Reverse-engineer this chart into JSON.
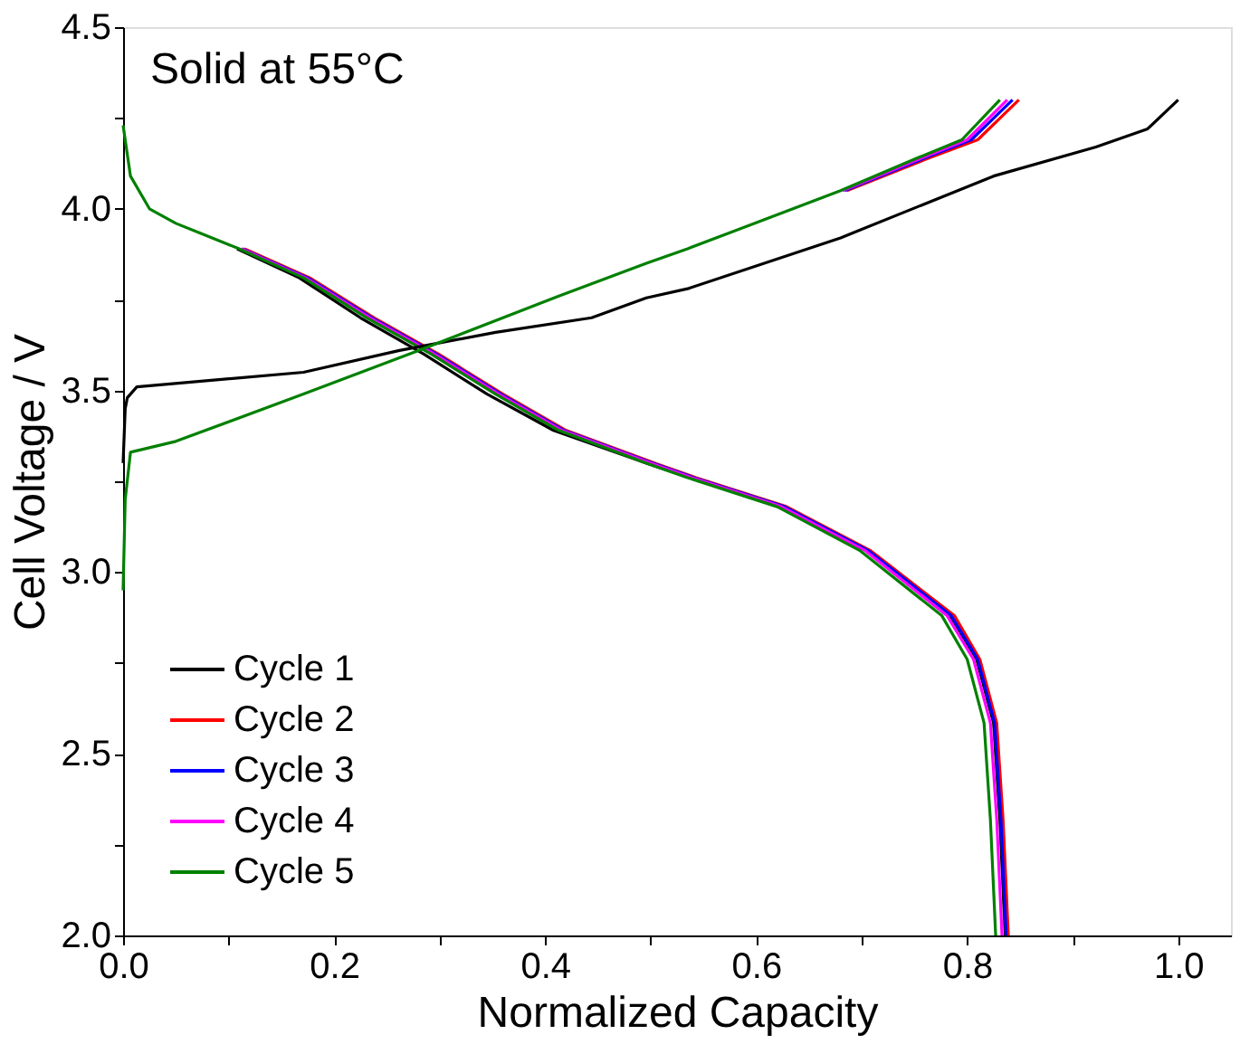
{
  "chart_data": {
    "type": "line",
    "xlabel": "Normalized Capacity",
    "ylabel": "Cell Voltage / V",
    "annotations": [
      "Solid at 55°C"
    ],
    "xlim": [
      0,
      1.05
    ],
    "ylim": [
      2.0,
      4.5
    ],
    "xticks": [
      {
        "value": 0,
        "label": "0.0"
      },
      {
        "value": 0.1,
        "label": null
      },
      {
        "value": 0.2,
        "label": "0.2"
      },
      {
        "value": 0.3,
        "label": null
      },
      {
        "value": 0.4,
        "label": "0.4"
      },
      {
        "value": 0.5,
        "label": null
      },
      {
        "value": 0.6,
        "label": "0.6"
      },
      {
        "value": 0.7,
        "label": null
      },
      {
        "value": 0.8,
        "label": "0.8"
      },
      {
        "value": 0.9,
        "label": null
      },
      {
        "value": 1.0,
        "label": "1.0"
      }
    ],
    "yticks": [
      {
        "value": 2.0,
        "label": "2.0"
      },
      {
        "value": 2.25,
        "label": null
      },
      {
        "value": 2.5,
        "label": "2.5"
      },
      {
        "value": 2.75,
        "label": null
      },
      {
        "value": 3.0,
        "label": "3.0"
      },
      {
        "value": 3.25,
        "label": null
      },
      {
        "value": 3.5,
        "label": "3.5"
      },
      {
        "value": 3.75,
        "label": null
      },
      {
        "value": 4.0,
        "label": "4.0"
      },
      {
        "value": 4.25,
        "label": null
      },
      {
        "value": 4.5,
        "label": "4.5"
      }
    ],
    "grid": false,
    "legend": "bottom left",
    "marker": "none",
    "line_style": "solid",
    "series": [
      {
        "name": "Cycle 1",
        "color": "#000000",
        "x": [
          0,
          0.002,
          0.004,
          0.013,
          0.171,
          0.262,
          0.353,
          0.444,
          0.496,
          0.535,
          0.68,
          0.825,
          0.922,
          0.971,
          1.0
        ],
        "values": [
          3.3,
          3.45,
          3.48,
          3.51,
          3.55,
          3.61,
          3.66,
          3.7,
          3.755,
          3.78,
          3.92,
          4.09,
          4.17,
          4.22,
          4.3
        ]
      },
      {
        "color": "#000000",
        "x": [
          0.108,
          0.167,
          0.225,
          0.285,
          0.345,
          0.408,
          0.496,
          0.537,
          0.625,
          0.705,
          0.784,
          0.809,
          0.825,
          0.831,
          0.836
        ],
        "values": [
          3.89,
          3.81,
          3.7,
          3.6,
          3.49,
          3.39,
          3.3,
          3.26,
          3.18,
          3.06,
          2.88,
          2.76,
          2.585,
          2.32,
          2.0
        ]
      },
      {
        "name": "Cycle 2",
        "color": "#ff0000",
        "x": [
          0.686,
          0.764,
          0.81,
          0.849
        ],
        "values": [
          4.05,
          4.14,
          4.19,
          4.3
        ]
      },
      {
        "color": "#ff0000",
        "x": [
          0.115,
          0.177,
          0.238,
          0.299,
          0.36,
          0.42,
          0.504,
          0.543,
          0.629,
          0.708,
          0.788,
          0.812,
          0.828,
          0.834,
          0.839
        ],
        "values": [
          3.89,
          3.81,
          3.7,
          3.6,
          3.49,
          3.39,
          3.3,
          3.26,
          3.18,
          3.06,
          2.88,
          2.76,
          2.585,
          2.32,
          2.0
        ]
      },
      {
        "name": "Cycle 3",
        "color": "#0000ff",
        "x": [
          0.684,
          0.76,
          0.804,
          0.843
        ],
        "values": [
          4.05,
          4.14,
          4.19,
          4.3
        ]
      },
      {
        "color": "#0000ff",
        "x": [
          0.113,
          0.175,
          0.236,
          0.297,
          0.358,
          0.418,
          0.502,
          0.541,
          0.627,
          0.706,
          0.785,
          0.81,
          0.826,
          0.832,
          0.837
        ],
        "values": [
          3.89,
          3.81,
          3.7,
          3.6,
          3.49,
          3.39,
          3.3,
          3.26,
          3.18,
          3.06,
          2.88,
          2.76,
          2.585,
          2.32,
          2.0
        ]
      },
      {
        "name": "Cycle 4",
        "color": "#ff00ff",
        "x": [
          0.682,
          0.757,
          0.8,
          0.838
        ],
        "values": [
          4.05,
          4.14,
          4.19,
          4.3
        ]
      },
      {
        "color": "#ff00ff",
        "x": [
          0.112,
          0.173,
          0.234,
          0.295,
          0.356,
          0.416,
          0.5,
          0.539,
          0.624,
          0.703,
          0.781,
          0.806,
          0.822,
          0.828,
          0.833
        ],
        "values": [
          3.89,
          3.81,
          3.7,
          3.6,
          3.49,
          3.39,
          3.3,
          3.26,
          3.18,
          3.06,
          2.88,
          2.76,
          2.585,
          2.32,
          2.0
        ]
      },
      {
        "name": "Cycle 5",
        "color": "#008000",
        "x": [
          0,
          0.002,
          0.007,
          0.05,
          0.171,
          0.28,
          0.413,
          0.496,
          0.535,
          0.68,
          0.753,
          0.795,
          0.831
        ],
        "values": [
          2.95,
          3.2,
          3.33,
          3.36,
          3.49,
          3.61,
          3.76,
          3.85,
          3.89,
          4.05,
          4.14,
          4.19,
          4.3
        ]
      },
      {
        "color": "#008000",
        "x": [
          0,
          0.007,
          0.025,
          0.05,
          0.11,
          0.171,
          0.231,
          0.292,
          0.353,
          0.413,
          0.496,
          0.535,
          0.62,
          0.698,
          0.776,
          0.8,
          0.816,
          0.822,
          0.827
        ],
        "values": [
          4.23,
          4.09,
          4.0,
          3.96,
          3.89,
          3.81,
          3.7,
          3.6,
          3.49,
          3.39,
          3.3,
          3.26,
          3.18,
          3.06,
          2.88,
          2.76,
          2.585,
          2.32,
          2.0
        ]
      }
    ]
  }
}
